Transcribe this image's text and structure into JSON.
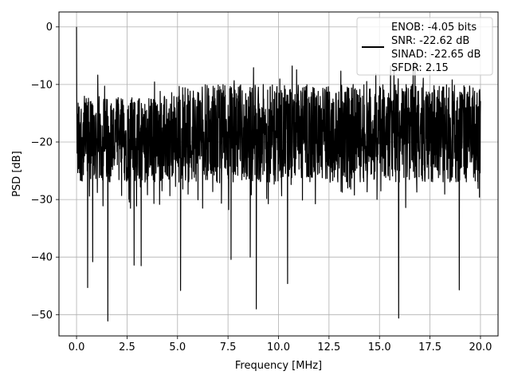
{
  "chart_data": {
    "type": "line",
    "title": "",
    "xlabel": "Frequency [MHz]",
    "ylabel": "PSD [dB]",
    "xlim": [
      -0.87,
      20.87
    ],
    "ylim": [
      -53.7,
      2.6
    ],
    "xticks": [
      0.0,
      2.5,
      5.0,
      7.5,
      10.0,
      12.5,
      15.0,
      17.5,
      20.0
    ],
    "xtick_labels": [
      "0.0",
      "2.5",
      "5.0",
      "7.5",
      "10.0",
      "12.5",
      "15.0",
      "17.5",
      "20.0"
    ],
    "yticks": [
      0,
      -10,
      -20,
      -30,
      -40,
      -50
    ],
    "ytick_labels": [
      "0",
      "−10",
      "−20",
      "−30",
      "−40",
      "−50"
    ],
    "grid": true,
    "legend_position": "top-right",
    "line_color": "#000000",
    "legend": {
      "lines": [
        "ENOB: -4.05 bits",
        "SNR: -22.62 dB",
        "SINAD: -22.65 dB",
        "SFDR: 2.15"
      ]
    },
    "series": [
      {
        "x_start": 0.0,
        "x_end": 20.0,
        "points": 2000,
        "typical_range": [
          -28,
          -10
        ],
        "peak": {
          "x": 0.0,
          "y": 0.0
        },
        "notable_dips": [
          {
            "x": 0.55,
            "y": -45.3
          },
          {
            "x": 0.8,
            "y": -40.8
          },
          {
            "x": 1.55,
            "y": -51.1
          },
          {
            "x": 2.85,
            "y": -41.4
          },
          {
            "x": 3.2,
            "y": -41.5
          },
          {
            "x": 5.15,
            "y": -45.8
          },
          {
            "x": 7.65,
            "y": -40.4
          },
          {
            "x": 8.6,
            "y": -40.0
          },
          {
            "x": 8.9,
            "y": -49.0
          },
          {
            "x": 10.45,
            "y": -44.6
          },
          {
            "x": 15.95,
            "y": -50.6
          },
          {
            "x": 18.95,
            "y": -45.7
          }
        ]
      }
    ]
  }
}
